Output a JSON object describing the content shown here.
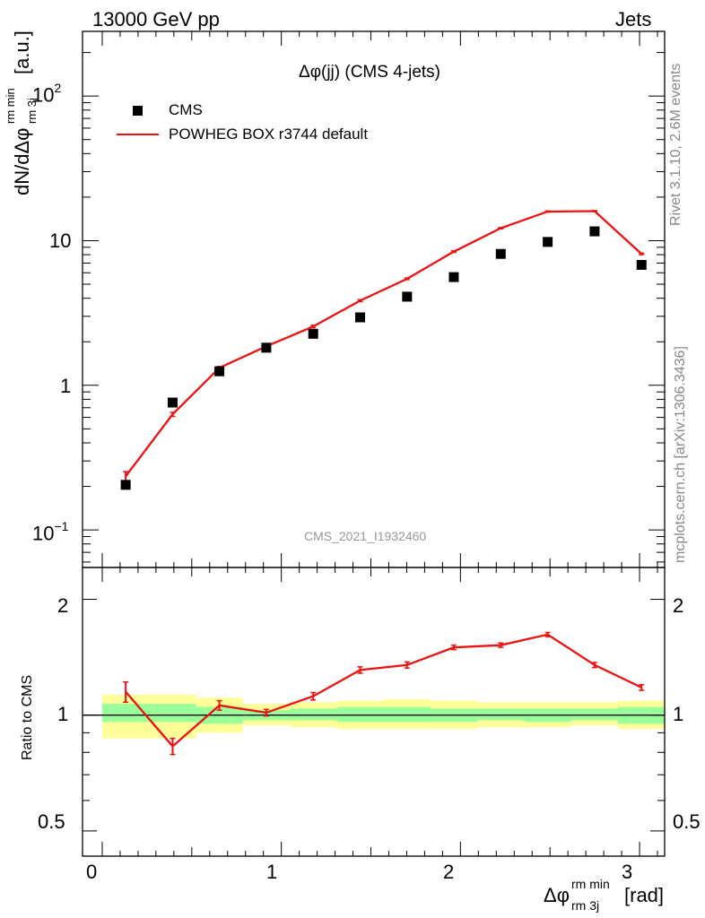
{
  "header": {
    "left": "13000 GeV pp",
    "right": "Jets"
  },
  "side_notes": {
    "rivet": "Rivet 3.1.10,  2.6M events",
    "mcplots": "mcplots.cern.ch [arXiv:1306.3436]"
  },
  "axes": {
    "y_main_label": "dN/dΔφ",
    "y_main_sup": "rm min",
    "y_main_sub": "rm 3j",
    "y_main_unit": "[a.u.]",
    "x_label": "Δφ",
    "x_sup": "rm min",
    "x_sub": "rm 3j",
    "x_unit": "[rad]",
    "y_ratio_label": "Ratio to CMS"
  },
  "main_ticks": {
    "t100_base": "10",
    "t100_exp": "2",
    "t10": "10",
    "t1": "1",
    "t01_base": "10",
    "t01_exp": "−1"
  },
  "ratio_ticks": [
    "2",
    "1",
    "0.5"
  ],
  "x_ticks": [
    "0",
    "1",
    "2",
    "3"
  ],
  "colors": {
    "data": "#000000",
    "mc": "#ee1111",
    "band_inner": "#99ff99",
    "band_outer": "#ffff99"
  },
  "chart_data": [
    {
      "type": "scatter",
      "title": "Δφ(jj) (CMS 4-jets)",
      "watermark": "CMS_2021_I1932460",
      "xlabel": "Δφ rm 3j rm min [rad]",
      "ylabel": "dN/dΔφ rm 3j rm min [a.u.]",
      "yscale": "log",
      "xlim": [
        -0.11,
        3.14
      ],
      "ylim": [
        0.055,
        280
      ],
      "legend_position": "top-left",
      "x": [
        0.131,
        0.393,
        0.654,
        0.916,
        1.178,
        1.44,
        1.702,
        1.963,
        2.225,
        2.487,
        2.749,
        3.011
      ],
      "series": [
        {
          "name": "CMS",
          "style": "markers",
          "values": [
            0.205,
            0.76,
            1.25,
            1.82,
            2.27,
            2.95,
            4.1,
            5.6,
            8.1,
            9.8,
            11.6,
            6.8
          ]
        },
        {
          "name": "POWHEG BOX r3744 default",
          "style": "line",
          "values": [
            0.235,
            0.63,
            1.32,
            1.86,
            2.55,
            3.85,
            5.45,
            8.4,
            12.2,
            15.9,
            16.0,
            8.1
          ],
          "errors": [
            0.018,
            0.02,
            0.03,
            0.04,
            0.05,
            0.06,
            0.07,
            0.1,
            0.12,
            0.15,
            0.15,
            0.1
          ]
        }
      ]
    },
    {
      "type": "line",
      "ylabel": "Ratio to CMS",
      "yscale": "log",
      "ylim": [
        0.43,
        2.42
      ],
      "x": [
        0.131,
        0.393,
        0.654,
        0.916,
        1.178,
        1.44,
        1.702,
        1.963,
        2.225,
        2.487,
        2.749,
        3.011
      ],
      "series": [
        {
          "name": "POWHEG BOX r3744 default",
          "values": [
            1.15,
            0.83,
            1.06,
            1.015,
            1.12,
            1.31,
            1.35,
            1.5,
            1.52,
            1.62,
            1.35,
            1.18
          ],
          "errors": [
            0.07,
            0.04,
            0.03,
            0.02,
            0.025,
            0.025,
            0.025,
            0.02,
            0.02,
            0.02,
            0.02,
            0.02
          ]
        }
      ],
      "uncertainty_bands": {
        "bin_edges": [
          0.0,
          0.524,
          0.785,
          1.047,
          1.309,
          1.571,
          1.833,
          2.094,
          2.356,
          2.618,
          2.88,
          3.142
        ],
        "inner": [
          [
            0.96,
            1.07
          ],
          [
            0.95,
            1.05
          ],
          [
            0.97,
            1.03
          ],
          [
            0.97,
            1.04
          ],
          [
            0.96,
            1.05
          ],
          [
            0.96,
            1.05
          ],
          [
            0.96,
            1.04
          ],
          [
            0.97,
            1.04
          ],
          [
            0.96,
            1.04
          ],
          [
            0.97,
            1.04
          ],
          [
            0.95,
            1.05
          ]
        ],
        "outer": [
          [
            0.87,
            1.13
          ],
          [
            0.9,
            1.11
          ],
          [
            0.94,
            1.07
          ],
          [
            0.93,
            1.08
          ],
          [
            0.92,
            1.09
          ],
          [
            0.92,
            1.1
          ],
          [
            0.92,
            1.09
          ],
          [
            0.93,
            1.08
          ],
          [
            0.93,
            1.08
          ],
          [
            0.94,
            1.08
          ],
          [
            0.92,
            1.09
          ]
        ]
      }
    }
  ]
}
